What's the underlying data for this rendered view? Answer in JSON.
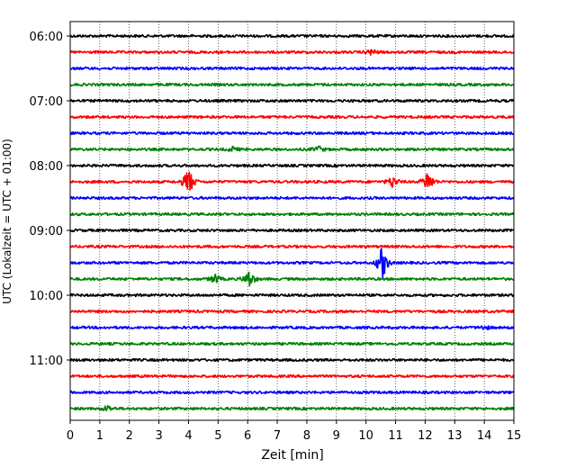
{
  "chart_data": {
    "type": "line",
    "title": "",
    "xlabel": "Zeit  [min]",
    "ylabel": "UTC (Lokalzeit = UTC + 01:00)",
    "xlim": [
      0,
      15
    ],
    "x_ticks": [
      0,
      1,
      2,
      3,
      4,
      5,
      6,
      7,
      8,
      9,
      10,
      11,
      12,
      13,
      14,
      15
    ],
    "y_tick_labels": [
      "06:00",
      "07:00",
      "08:00",
      "09:00",
      "10:00",
      "11:00"
    ],
    "trace_start_times": [
      "06:00",
      "06:15",
      "06:30",
      "06:45",
      "07:00",
      "07:15",
      "07:30",
      "07:45",
      "08:00",
      "08:15",
      "08:30",
      "08:45",
      "09:00",
      "09:15",
      "09:30",
      "09:45",
      "10:00",
      "10:15",
      "10:30",
      "10:45",
      "11:00",
      "11:15",
      "11:30",
      "11:45"
    ],
    "trace_color_cycle": [
      "#000000",
      "#ff0000",
      "#0000ff",
      "#008000"
    ],
    "grid": {
      "vertical": true,
      "style": "dotted"
    },
    "events": [
      {
        "start_time": "06:15",
        "x": 10.2,
        "amplitude": 0.4
      },
      {
        "start_time": "07:45",
        "x": 5.5,
        "amplitude": 0.3
      },
      {
        "start_time": "07:45",
        "x": 8.4,
        "amplitude": 0.4
      },
      {
        "start_time": "08:15",
        "x": 4.0,
        "amplitude": 2.0
      },
      {
        "start_time": "08:15",
        "x": 10.9,
        "amplitude": 0.8
      },
      {
        "start_time": "08:15",
        "x": 12.1,
        "amplitude": 1.6
      },
      {
        "start_time": "09:30",
        "x": 10.55,
        "amplitude": 2.4
      },
      {
        "start_time": "09:45",
        "x": 4.9,
        "amplitude": 0.6
      },
      {
        "start_time": "09:45",
        "x": 6.05,
        "amplitude": 1.2
      },
      {
        "start_time": "10:30",
        "x": 14.0,
        "amplitude": 0.3
      },
      {
        "start_time": "11:45",
        "x": 1.25,
        "amplitude": 0.4
      }
    ]
  }
}
